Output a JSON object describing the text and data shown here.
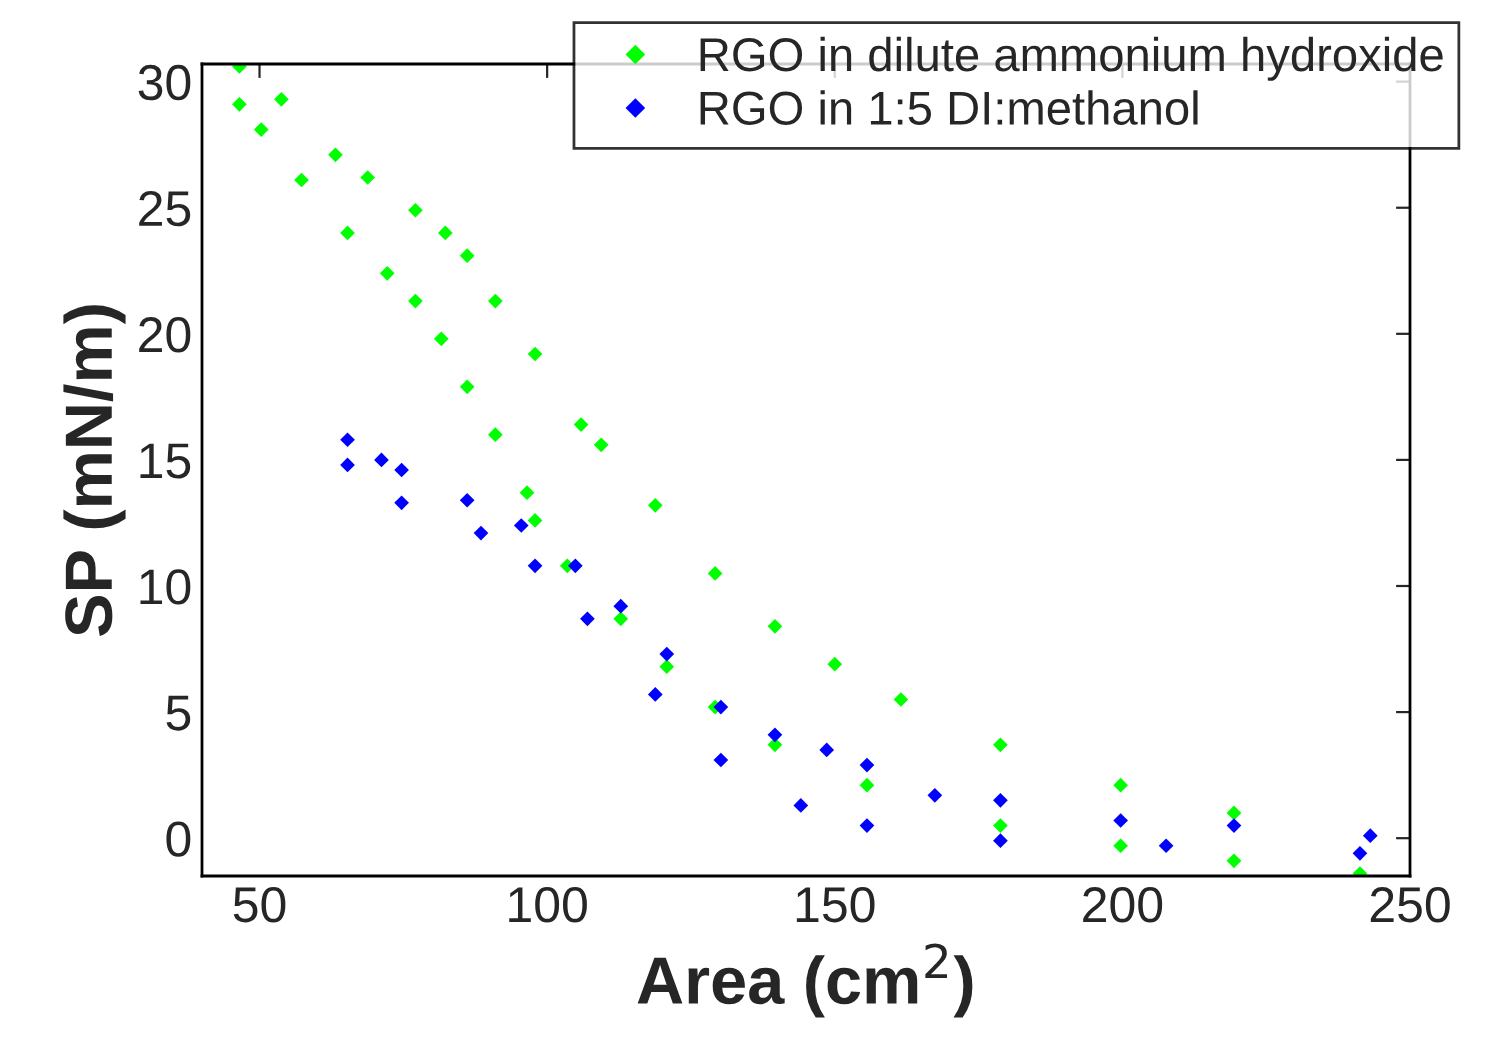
{
  "chart_data": {
    "type": "scatter",
    "xlabel": "Area (cm$^{2}$)",
    "ylabel": "SP (mN/m)",
    "xlim": [
      40,
      250
    ],
    "ylim": [
      -1.5,
      30.7
    ],
    "xticks": [
      50,
      100,
      150,
      200,
      250
    ],
    "yticks": [
      0,
      5,
      10,
      15,
      20,
      25,
      30
    ],
    "grid": false,
    "legend": "top right",
    "marker": "diamond",
    "series": [
      {
        "name": "RGO in dilute ammonium hydroxide",
        "color": "#00ff00",
        "x": [
          219.4,
          199.7,
          178.8,
          161.5,
          150.0,
          139.6,
          129.2,
          118.8,
          109.4,
          105.9,
          97.9,
          91.0,
          86.1,
          82.3,
          77.1,
          68.8,
          63.2,
          53.8,
          46.5,
          46.5,
          50.3,
          57.3,
          65.3,
          72.2,
          77.1,
          81.6,
          86.1,
          91.0,
          96.5,
          97.9,
          103.5,
          112.8,
          120.8,
          129.2,
          139.6,
          155.6,
          178.8,
          199.7,
          219.4,
          241.3
        ],
        "values": [
          1.0,
          2.1,
          3.7,
          5.5,
          6.9,
          8.4,
          10.5,
          13.2,
          15.6,
          16.4,
          19.2,
          21.3,
          23.1,
          24.0,
          24.9,
          26.2,
          27.1,
          29.3,
          30.6,
          29.1,
          28.1,
          26.1,
          24.0,
          22.4,
          21.3,
          19.8,
          17.9,
          16.0,
          13.7,
          12.6,
          10.8,
          8.7,
          6.8,
          5.2,
          3.7,
          2.1,
          0.5,
          -0.3,
          -0.9,
          -1.4
        ]
      },
      {
        "name": "RGO in 1:5 DI:methanol",
        "color": "#0000ff",
        "x": [
          243.1,
          219.4,
          199.7,
          178.8,
          167.4,
          155.6,
          148.6,
          139.6,
          130.2,
          120.8,
          112.8,
          104.9,
          95.5,
          86.1,
          74.7,
          71.2,
          65.3,
          65.3,
          74.7,
          88.5,
          97.9,
          107.0,
          118.8,
          130.2,
          144.1,
          155.6,
          178.8,
          207.6,
          241.3
        ],
        "values": [
          0.1,
          0.5,
          0.7,
          1.5,
          1.7,
          2.9,
          3.5,
          4.1,
          5.2,
          7.3,
          9.2,
          10.8,
          12.4,
          13.4,
          14.6,
          15.0,
          15.8,
          14.8,
          13.3,
          12.1,
          10.8,
          8.7,
          5.7,
          3.1,
          1.3,
          0.5,
          -0.1,
          -0.3,
          -0.6
        ]
      }
    ]
  }
}
